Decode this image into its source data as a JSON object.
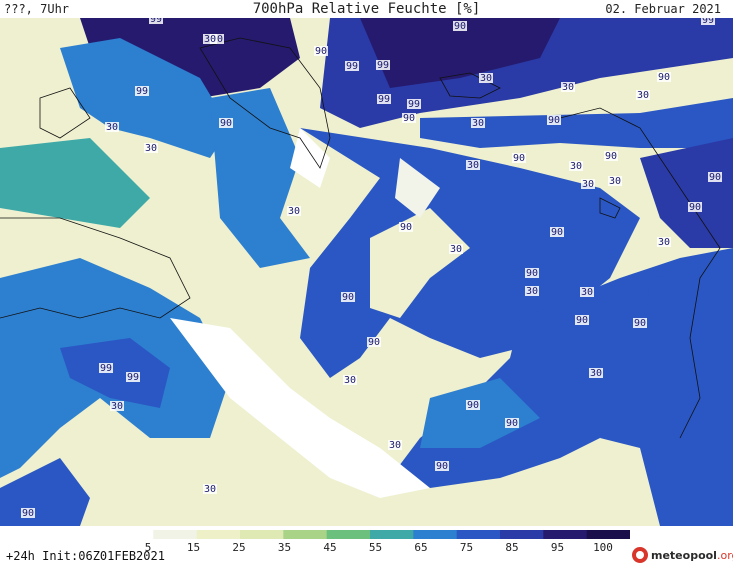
{
  "header": {
    "left": "???, 7Uhr",
    "title": "700hPa Relative Feuchte [%]",
    "date": "02. Februar 2021"
  },
  "colorbar": {
    "ticks": [
      "5",
      "15",
      "25",
      "35",
      "45",
      "55",
      "65",
      "75",
      "85",
      "95",
      "100"
    ],
    "colors": [
      "#ffffff",
      "#f0f3e6",
      "#eef0c8",
      "#dfe9b4",
      "#a9d488",
      "#6cc07d",
      "#3fa9a8",
      "#2d7fd0",
      "#2a57c4",
      "#2a3aa6",
      "#251a6e",
      "#1a0f4a"
    ]
  },
  "footer": {
    "left": "+24h Init:06Z01FEB2021",
    "logo": "meteopool",
    "logo_suffix": ".org"
  },
  "map_labels": [
    {
      "text": "99"
    },
    {
      "text": "90"
    },
    {
      "text": "30"
    },
    {
      "text": "99"
    },
    {
      "text": "99"
    },
    {
      "text": "90"
    },
    {
      "text": "99"
    },
    {
      "text": "99"
    },
    {
      "text": "30"
    },
    {
      "text": "90"
    },
    {
      "text": "30"
    },
    {
      "text": "90"
    },
    {
      "text": "30"
    },
    {
      "text": "99"
    },
    {
      "text": "30"
    },
    {
      "text": "90"
    },
    {
      "text": "30"
    },
    {
      "text": "90"
    },
    {
      "text": "30"
    },
    {
      "text": "99"
    },
    {
      "text": "90"
    },
    {
      "text": "30"
    },
    {
      "text": "90"
    },
    {
      "text": "30"
    },
    {
      "text": "90"
    },
    {
      "text": "30"
    },
    {
      "text": "30"
    },
    {
      "text": "90"
    },
    {
      "text": "30"
    },
    {
      "text": "90"
    },
    {
      "text": "90"
    },
    {
      "text": "30"
    },
    {
      "text": "90"
    },
    {
      "text": "30"
    },
    {
      "text": "90"
    },
    {
      "text": "30"
    },
    {
      "text": "90"
    },
    {
      "text": "30"
    },
    {
      "text": "99"
    },
    {
      "text": "99"
    },
    {
      "text": "90"
    },
    {
      "text": "30"
    },
    {
      "text": "90"
    },
    {
      "text": "90"
    },
    {
      "text": "90"
    },
    {
      "text": "30"
    },
    {
      "text": "90"
    },
    {
      "text": "30"
    },
    {
      "text": "30"
    },
    {
      "text": "90"
    },
    {
      "text": "30"
    },
    {
      "text": "90"
    }
  ]
}
